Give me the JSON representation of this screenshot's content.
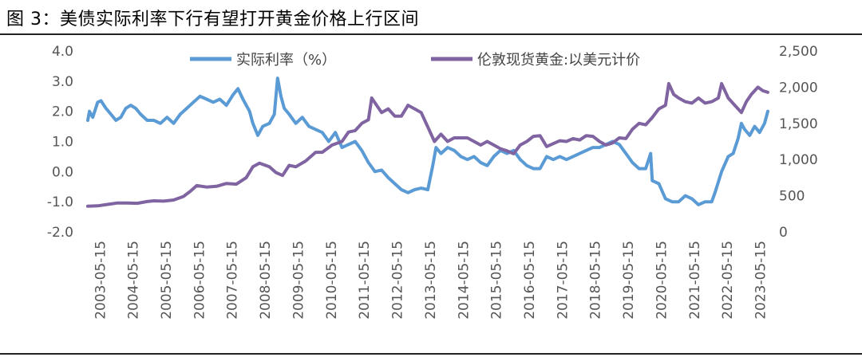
{
  "title": "图 3：美债实际利率下行有望打开黄金价格上行区间",
  "chart_data": {
    "type": "line",
    "x_ticks": [
      "2003-05-15",
      "2004-05-15",
      "2005-05-15",
      "2006-05-15",
      "2007-05-15",
      "2008-05-15",
      "2009-05-15",
      "2010-05-15",
      "2011-05-15",
      "2012-05-15",
      "2013-05-15",
      "2014-05-15",
      "2015-05-15",
      "2016-05-15",
      "2017-05-15",
      "2018-05-15",
      "2019-05-15",
      "2020-05-15",
      "2021-05-15",
      "2022-05-15",
      "2023-05-15"
    ],
    "x_range": [
      2003.0,
      2023.6
    ],
    "left_axis": {
      "ticks": [
        "4.0",
        "3.0",
        "2.0",
        "1.0",
        "0.0",
        "-1.0",
        "-2.0"
      ],
      "range": [
        -2.0,
        4.0
      ]
    },
    "right_axis": {
      "ticks": [
        "2,500",
        "2,000",
        "1,500",
        "1,000",
        "500",
        "0"
      ],
      "range": [
        0,
        2500
      ]
    },
    "legend_position": "top",
    "series": [
      {
        "name": "实际利率（%）",
        "axis": "left",
        "color": "#5b9bd5",
        "points": [
          [
            2003.0,
            1.7
          ],
          [
            2003.05,
            2.0
          ],
          [
            2003.15,
            1.8
          ],
          [
            2003.3,
            2.3
          ],
          [
            2003.4,
            2.35
          ],
          [
            2003.55,
            2.1
          ],
          [
            2003.7,
            1.9
          ],
          [
            2003.85,
            1.7
          ],
          [
            2004.0,
            1.8
          ],
          [
            2004.15,
            2.1
          ],
          [
            2004.3,
            2.2
          ],
          [
            2004.45,
            2.1
          ],
          [
            2004.6,
            1.9
          ],
          [
            2004.8,
            1.7
          ],
          [
            2005.0,
            1.7
          ],
          [
            2005.2,
            1.6
          ],
          [
            2005.4,
            1.8
          ],
          [
            2005.6,
            1.6
          ],
          [
            2005.8,
            1.9
          ],
          [
            2006.0,
            2.1
          ],
          [
            2006.2,
            2.3
          ],
          [
            2006.4,
            2.5
          ],
          [
            2006.6,
            2.4
          ],
          [
            2006.8,
            2.3
          ],
          [
            2007.0,
            2.4
          ],
          [
            2007.2,
            2.2
          ],
          [
            2007.4,
            2.55
          ],
          [
            2007.55,
            2.75
          ],
          [
            2007.7,
            2.4
          ],
          [
            2007.9,
            2.0
          ],
          [
            2008.0,
            1.6
          ],
          [
            2008.15,
            1.2
          ],
          [
            2008.3,
            1.5
          ],
          [
            2008.5,
            1.6
          ],
          [
            2008.65,
            1.9
          ],
          [
            2008.75,
            3.1
          ],
          [
            2008.85,
            2.5
          ],
          [
            2008.95,
            2.1
          ],
          [
            2009.1,
            1.9
          ],
          [
            2009.3,
            1.6
          ],
          [
            2009.5,
            1.8
          ],
          [
            2009.7,
            1.5
          ],
          [
            2009.9,
            1.4
          ],
          [
            2010.1,
            1.3
          ],
          [
            2010.3,
            1.0
          ],
          [
            2010.5,
            1.3
          ],
          [
            2010.7,
            0.8
          ],
          [
            2010.9,
            0.9
          ],
          [
            2011.1,
            1.0
          ],
          [
            2011.3,
            0.7
          ],
          [
            2011.5,
            0.3
          ],
          [
            2011.7,
            0.0
          ],
          [
            2011.9,
            0.05
          ],
          [
            2012.1,
            -0.2
          ],
          [
            2012.3,
            -0.4
          ],
          [
            2012.5,
            -0.6
          ],
          [
            2012.7,
            -0.7
          ],
          [
            2012.9,
            -0.6
          ],
          [
            2013.1,
            -0.55
          ],
          [
            2013.3,
            -0.6
          ],
          [
            2013.45,
            0.2
          ],
          [
            2013.55,
            0.8
          ],
          [
            2013.7,
            0.6
          ],
          [
            2013.9,
            0.8
          ],
          [
            2014.1,
            0.7
          ],
          [
            2014.3,
            0.5
          ],
          [
            2014.5,
            0.4
          ],
          [
            2014.7,
            0.5
          ],
          [
            2014.9,
            0.3
          ],
          [
            2015.1,
            0.2
          ],
          [
            2015.3,
            0.5
          ],
          [
            2015.5,
            0.7
          ],
          [
            2015.7,
            0.6
          ],
          [
            2015.9,
            0.7
          ],
          [
            2016.1,
            0.4
          ],
          [
            2016.3,
            0.2
          ],
          [
            2016.5,
            0.1
          ],
          [
            2016.7,
            0.1
          ],
          [
            2016.9,
            0.5
          ],
          [
            2017.1,
            0.4
          ],
          [
            2017.3,
            0.5
          ],
          [
            2017.5,
            0.4
          ],
          [
            2017.7,
            0.5
          ],
          [
            2017.9,
            0.6
          ],
          [
            2018.1,
            0.7
          ],
          [
            2018.3,
            0.8
          ],
          [
            2018.5,
            0.8
          ],
          [
            2018.7,
            0.9
          ],
          [
            2018.9,
            1.0
          ],
          [
            2019.1,
            0.9
          ],
          [
            2019.3,
            0.6
          ],
          [
            2019.5,
            0.3
          ],
          [
            2019.7,
            0.1
          ],
          [
            2019.9,
            0.1
          ],
          [
            2020.05,
            0.6
          ],
          [
            2020.1,
            -0.3
          ],
          [
            2020.3,
            -0.4
          ],
          [
            2020.5,
            -0.9
          ],
          [
            2020.7,
            -1.0
          ],
          [
            2020.9,
            -1.0
          ],
          [
            2021.1,
            -0.8
          ],
          [
            2021.3,
            -0.9
          ],
          [
            2021.5,
            -1.1
          ],
          [
            2021.7,
            -1.0
          ],
          [
            2021.9,
            -1.0
          ],
          [
            2022.0,
            -0.7
          ],
          [
            2022.2,
            0.0
          ],
          [
            2022.4,
            0.5
          ],
          [
            2022.55,
            0.6
          ],
          [
            2022.7,
            1.1
          ],
          [
            2022.8,
            1.6
          ],
          [
            2022.9,
            1.4
          ],
          [
            2023.05,
            1.2
          ],
          [
            2023.2,
            1.5
          ],
          [
            2023.35,
            1.3
          ],
          [
            2023.5,
            1.6
          ],
          [
            2023.6,
            2.0
          ]
        ]
      },
      {
        "name": "伦敦现货黄金:以美元计价",
        "axis": "right",
        "color": "#8064a2",
        "points": [
          [
            2003.0,
            355
          ],
          [
            2003.3,
            360
          ],
          [
            2003.6,
            380
          ],
          [
            2003.9,
            400
          ],
          [
            2004.2,
            400
          ],
          [
            2004.5,
            395
          ],
          [
            2004.8,
            420
          ],
          [
            2005.0,
            430
          ],
          [
            2005.3,
            425
          ],
          [
            2005.6,
            440
          ],
          [
            2005.9,
            490
          ],
          [
            2006.1,
            560
          ],
          [
            2006.3,
            640
          ],
          [
            2006.6,
            620
          ],
          [
            2006.9,
            630
          ],
          [
            2007.2,
            670
          ],
          [
            2007.5,
            660
          ],
          [
            2007.8,
            750
          ],
          [
            2008.0,
            900
          ],
          [
            2008.2,
            950
          ],
          [
            2008.5,
            900
          ],
          [
            2008.7,
            820
          ],
          [
            2008.9,
            780
          ],
          [
            2009.1,
            920
          ],
          [
            2009.3,
            900
          ],
          [
            2009.6,
            980
          ],
          [
            2009.9,
            1100
          ],
          [
            2010.1,
            1100
          ],
          [
            2010.4,
            1200
          ],
          [
            2010.7,
            1250
          ],
          [
            2010.9,
            1380
          ],
          [
            2011.1,
            1400
          ],
          [
            2011.3,
            1500
          ],
          [
            2011.5,
            1550
          ],
          [
            2011.6,
            1850
          ],
          [
            2011.75,
            1750
          ],
          [
            2011.9,
            1650
          ],
          [
            2012.1,
            1700
          ],
          [
            2012.3,
            1600
          ],
          [
            2012.5,
            1600
          ],
          [
            2012.7,
            1750
          ],
          [
            2012.9,
            1700
          ],
          [
            2013.1,
            1650
          ],
          [
            2013.3,
            1450
          ],
          [
            2013.5,
            1250
          ],
          [
            2013.7,
            1350
          ],
          [
            2013.9,
            1250
          ],
          [
            2014.1,
            1300
          ],
          [
            2014.3,
            1300
          ],
          [
            2014.5,
            1300
          ],
          [
            2014.7,
            1250
          ],
          [
            2014.9,
            1200
          ],
          [
            2015.1,
            1250
          ],
          [
            2015.3,
            1200
          ],
          [
            2015.5,
            1150
          ],
          [
            2015.7,
            1120
          ],
          [
            2015.9,
            1080
          ],
          [
            2016.1,
            1200
          ],
          [
            2016.3,
            1250
          ],
          [
            2016.5,
            1320
          ],
          [
            2016.7,
            1330
          ],
          [
            2016.9,
            1180
          ],
          [
            2017.1,
            1220
          ],
          [
            2017.3,
            1260
          ],
          [
            2017.5,
            1250
          ],
          [
            2017.7,
            1290
          ],
          [
            2017.9,
            1270
          ],
          [
            2018.1,
            1330
          ],
          [
            2018.3,
            1320
          ],
          [
            2018.5,
            1250
          ],
          [
            2018.7,
            1200
          ],
          [
            2018.9,
            1230
          ],
          [
            2019.1,
            1300
          ],
          [
            2019.3,
            1290
          ],
          [
            2019.5,
            1420
          ],
          [
            2019.7,
            1500
          ],
          [
            2019.9,
            1480
          ],
          [
            2020.1,
            1580
          ],
          [
            2020.3,
            1700
          ],
          [
            2020.5,
            1750
          ],
          [
            2020.6,
            2050
          ],
          [
            2020.75,
            1900
          ],
          [
            2020.9,
            1850
          ],
          [
            2021.1,
            1800
          ],
          [
            2021.3,
            1780
          ],
          [
            2021.5,
            1850
          ],
          [
            2021.7,
            1780
          ],
          [
            2021.9,
            1800
          ],
          [
            2022.1,
            1850
          ],
          [
            2022.2,
            2050
          ],
          [
            2022.4,
            1850
          ],
          [
            2022.6,
            1750
          ],
          [
            2022.8,
            1650
          ],
          [
            2022.95,
            1800
          ],
          [
            2023.1,
            1900
          ],
          [
            2023.3,
            2000
          ],
          [
            2023.45,
            1950
          ],
          [
            2023.6,
            1930
          ]
        ]
      }
    ]
  }
}
